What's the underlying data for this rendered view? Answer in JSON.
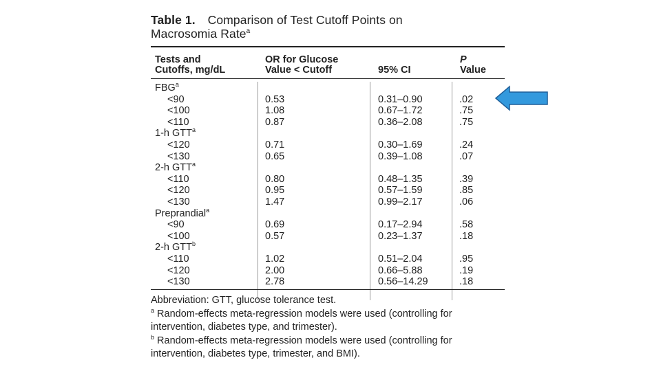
{
  "table": {
    "number": "Table 1.",
    "title_line1": "Comparison of Test Cutoff Points on",
    "title_line2": "Macrosomia Rate",
    "title_sup": "a",
    "headers": {
      "col1_line1": "Tests and",
      "col1_line2": "Cutoffs, mg/dL",
      "col2_line1": "OR for Glucose",
      "col2_line2": "Value < Cutoff",
      "col3": "95% CI",
      "col4_line1": "P",
      "col4_line2": "Value"
    },
    "groups": [
      {
        "name": "FBG",
        "sup": "a",
        "rows": [
          {
            "cutoff": "<90",
            "or": "0.53",
            "ci": "0.31–0.90",
            "p": ".02"
          },
          {
            "cutoff": "<100",
            "or": "1.08",
            "ci": "0.67–1.72",
            "p": ".75"
          },
          {
            "cutoff": "<110",
            "or": "0.87",
            "ci": "0.36–2.08",
            "p": ".75"
          }
        ]
      },
      {
        "name": "1-h GTT",
        "sup": "a",
        "rows": [
          {
            "cutoff": "<120",
            "or": "0.71",
            "ci": "0.30–1.69",
            "p": ".24"
          },
          {
            "cutoff": "<130",
            "or": "0.65",
            "ci": "0.39–1.08",
            "p": ".07"
          }
        ]
      },
      {
        "name": "2-h GTT",
        "sup": "a",
        "rows": [
          {
            "cutoff": "<110",
            "or": "0.80",
            "ci": "0.48–1.35",
            "p": ".39"
          },
          {
            "cutoff": "<120",
            "or": "0.95",
            "ci": "0.57–1.59",
            "p": ".85"
          },
          {
            "cutoff": "<130",
            "or": "1.47",
            "ci": "0.99–2.17",
            "p": ".06"
          }
        ]
      },
      {
        "name": "Preprandial",
        "sup": "a",
        "rows": [
          {
            "cutoff": "<90",
            "or": "0.69",
            "ci": "0.17–2.94",
            "p": ".58"
          },
          {
            "cutoff": "<100",
            "or": "0.57",
            "ci": "0.23–1.37",
            "p": ".18"
          }
        ]
      },
      {
        "name": "2-h GTT",
        "sup": "b",
        "rows": [
          {
            "cutoff": "<110",
            "or": "1.02",
            "ci": "0.51–2.04",
            "p": ".95"
          },
          {
            "cutoff": "<120",
            "or": "2.00",
            "ci": "0.66–5.88",
            "p": ".19"
          },
          {
            "cutoff": "<130",
            "or": "2.78",
            "ci": "0.56–14.29",
            "p": ".18"
          }
        ]
      }
    ],
    "footnotes": {
      "abbreviation": "Abbreviation: GTT, glucose tolerance test.",
      "a_mark": "a",
      "a_line1": "Random-effects meta-regression models were used (controlling for",
      "a_line2": "intervention, diabetes type, and trimester).",
      "b_mark": "b",
      "b_line1": "Random-effects meta-regression models were used (controlling for",
      "b_line2": "intervention, diabetes type, trimester, and BMI)."
    }
  },
  "annotation": {
    "arrow_color": "#3399dd",
    "arrow_stroke": "#1f5f99",
    "arrow_icon": "left-arrow-icon"
  }
}
